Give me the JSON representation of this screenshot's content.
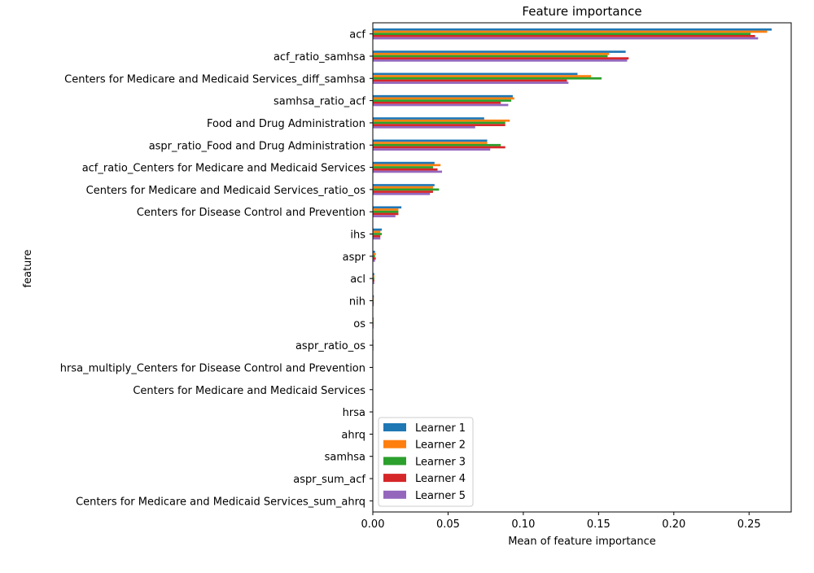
{
  "chart_data": {
    "type": "bar",
    "orientation": "horizontal",
    "title": "Feature importance",
    "xlabel": "Mean of feature importance",
    "ylabel": "feature",
    "xlim": [
      0.0,
      0.278
    ],
    "xticks": [
      "0.00",
      "0.05",
      "0.10",
      "0.15",
      "0.20",
      "0.25"
    ],
    "xtick_values": [
      0.0,
      0.05,
      0.1,
      0.15,
      0.2,
      0.25
    ],
    "grid": false,
    "legend_position": "lower-left",
    "categories": [
      "acf",
      "acf_ratio_samhsa",
      "Centers for Medicare and Medicaid Services_diff_samhsa",
      "samhsa_ratio_acf",
      "Food and Drug Administration",
      "aspr_ratio_Food and Drug Administration",
      "acf_ratio_Centers for Medicare and Medicaid Services",
      "Centers for Medicare and Medicaid Services_ratio_os",
      "Centers for Disease Control and Prevention",
      "ihs",
      "aspr",
      "acl",
      "nih",
      "os",
      "aspr_ratio_os",
      "hrsa_multiply_Centers for Disease Control and Prevention",
      "Centers for Medicare and Medicaid Services",
      "hrsa",
      "ahrq",
      "samhsa",
      "aspr_sum_acf",
      "Centers for Medicare and Medicaid Services_sum_ahrq"
    ],
    "series": [
      {
        "name": "Learner 1",
        "color": "#1f77b4",
        "values": [
          0.265,
          0.168,
          0.136,
          0.093,
          0.074,
          0.076,
          0.041,
          0.041,
          0.019,
          0.006,
          0.0015,
          0.001,
          0.0007,
          0.0005,
          0.0004,
          0.0002,
          0.0001,
          0.0001,
          0.0,
          0.0,
          0.0,
          0.0
        ]
      },
      {
        "name": "Learner 2",
        "color": "#ff7f0e",
        "values": [
          0.262,
          0.157,
          0.145,
          0.094,
          0.091,
          0.076,
          0.045,
          0.04,
          0.017,
          0.005,
          0.002,
          0.001,
          0.0007,
          0.0006,
          0.0004,
          0.0002,
          0.0001,
          0.0001,
          0.0,
          0.0,
          0.0,
          0.0
        ]
      },
      {
        "name": "Learner 3",
        "color": "#2ca02c",
        "values": [
          0.251,
          0.156,
          0.152,
          0.092,
          0.088,
          0.085,
          0.04,
          0.044,
          0.017,
          0.006,
          0.0015,
          0.001,
          0.0006,
          0.0005,
          0.0004,
          0.0002,
          0.0001,
          0.0001,
          0.0,
          0.0,
          0.0,
          0.0
        ]
      },
      {
        "name": "Learner 4",
        "color": "#d62728",
        "values": [
          0.254,
          0.17,
          0.129,
          0.085,
          0.088,
          0.088,
          0.043,
          0.04,
          0.017,
          0.005,
          0.002,
          0.001,
          0.0006,
          0.0005,
          0.0004,
          0.0002,
          0.0001,
          0.0001,
          0.0,
          0.0,
          0.0,
          0.0
        ]
      },
      {
        "name": "Learner 5",
        "color": "#9467bd",
        "values": [
          0.256,
          0.169,
          0.13,
          0.09,
          0.068,
          0.078,
          0.046,
          0.038,
          0.015,
          0.005,
          0.0015,
          0.001,
          0.0006,
          0.0005,
          0.0004,
          0.0002,
          0.0001,
          0.0001,
          0.0,
          0.0,
          0.0,
          0.0
        ]
      }
    ]
  }
}
